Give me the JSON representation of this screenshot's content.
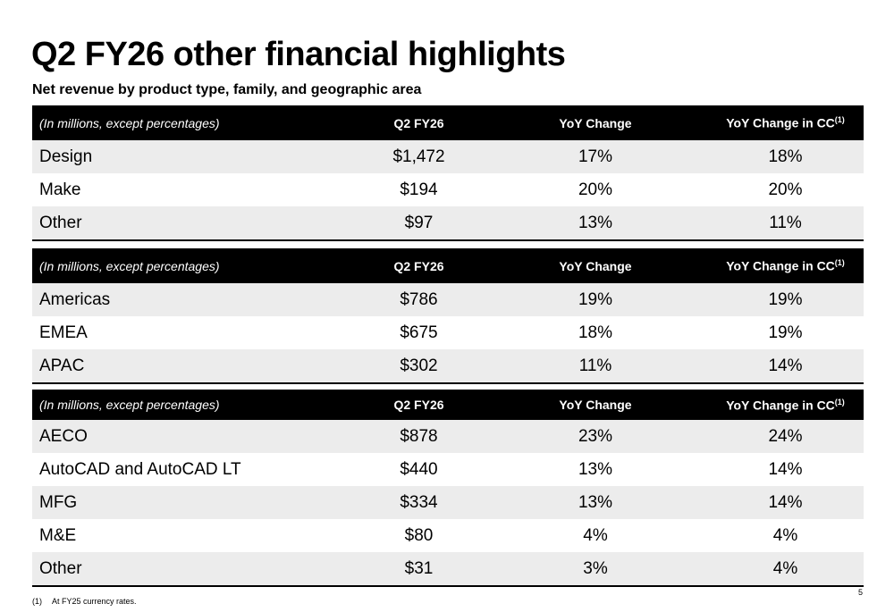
{
  "title": "Q2 FY26 other financial highlights",
  "subtitle": "Net revenue by product type, family, and geographic area",
  "tables": [
    {
      "header": [
        "(In millions, except percentages)",
        "Q2 FY26",
        "YoY Change",
        "YoY Change in CC",
        "(1)"
      ],
      "rows": [
        [
          "Design",
          "$1,472",
          "17%",
          "18%"
        ],
        [
          "Make",
          "$194",
          "20%",
          "20%"
        ],
        [
          "Other",
          "$97",
          "13%",
          "11%"
        ]
      ]
    },
    {
      "header": [
        "(In millions, except percentages)",
        "Q2 FY26",
        "YoY Change",
        "YoY Change in CC",
        "(1)"
      ],
      "rows": [
        [
          "Americas",
          "$786",
          "19%",
          "19%"
        ],
        [
          "EMEA",
          "$675",
          "18%",
          "19%"
        ],
        [
          "APAC",
          "$302",
          "11%",
          "14%"
        ]
      ]
    },
    {
      "header": [
        "(In millions, except percentages)",
        "Q2 FY26",
        "YoY Change",
        "YoY Change in CC",
        "(1)"
      ],
      "rows": [
        [
          "AECO",
          "$878",
          "23%",
          "24%"
        ],
        [
          "AutoCAD and AutoCAD LT",
          "$440",
          "13%",
          "14%"
        ],
        [
          "MFG",
          "$334",
          "13%",
          "14%"
        ],
        [
          "M&E",
          "$80",
          "4%",
          "4%"
        ],
        [
          "Other",
          "$31",
          "3%",
          "4%"
        ]
      ]
    }
  ],
  "footnote": {
    "marker": "(1)",
    "text": "At FY25 currency rates."
  },
  "page_number": "5"
}
